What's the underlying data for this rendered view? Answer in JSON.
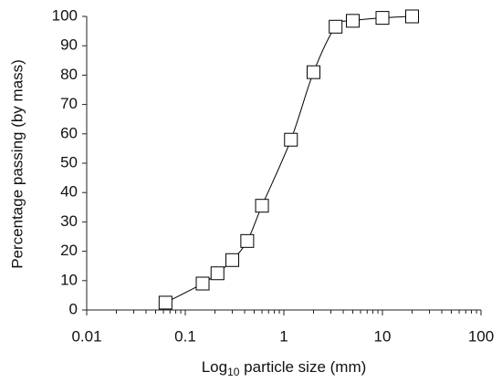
{
  "chart_data": {
    "type": "line",
    "y_label": "Percentage passing (by mass)",
    "x_label_parts": [
      "Log",
      "10",
      " particle size (mm)"
    ],
    "x": [
      0.063,
      0.15,
      0.212,
      0.3,
      0.425,
      0.6,
      1.18,
      2,
      3.35,
      5,
      10,
      20
    ],
    "series": [
      {
        "color": "#000000",
        "values": [
          2.5,
          9,
          12.5,
          17,
          23.5,
          35.5,
          58,
          81,
          96.5,
          98.5,
          99.5,
          100
        ]
      }
    ],
    "xlim": [
      0.01,
      100
    ],
    "xticks": [
      0.01,
      0.1,
      1,
      10,
      100
    ],
    "xscale": "log",
    "ylim": [
      0,
      100
    ],
    "yticks": [
      0,
      10,
      20,
      30,
      40,
      50,
      60,
      70,
      80,
      90,
      100
    ],
    "marker": "square",
    "grid": false
  }
}
